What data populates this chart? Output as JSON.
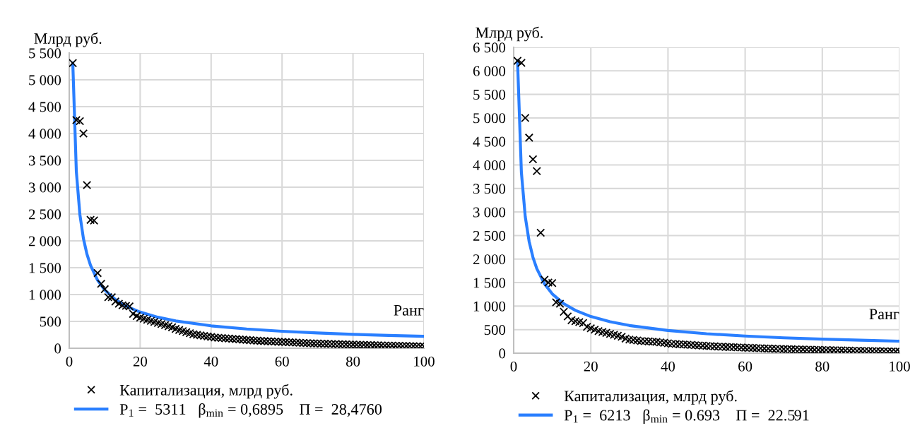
{
  "chart_data": [
    {
      "type": "scatter",
      "ylabel": "Млрд руб.",
      "xlabel": "Ранг",
      "xlim": [
        0,
        100
      ],
      "xticks": [
        0,
        20,
        40,
        60,
        80,
        100
      ],
      "ylim": [
        0,
        5500
      ],
      "yticks": [
        0,
        500,
        {
          "value": 1000,
          "label": "1 000"
        },
        {
          "value": 1500,
          "label": "1 500"
        },
        {
          "value": 2000,
          "label": "2 000"
        },
        {
          "value": 2500,
          "label": "2 500"
        },
        {
          "value": 3000,
          "label": "3 000"
        },
        {
          "value": 3500,
          "label": "3 500"
        },
        {
          "value": 4000,
          "label": "4 000"
        },
        {
          "value": 4500,
          "label": "4 500"
        },
        {
          "value": 5000,
          "label": "5 000"
        },
        {
          "value": 5500,
          "label": "5 500"
        }
      ],
      "grid": true,
      "legend": "bottom",
      "marker": "cross",
      "x": [
        1,
        2,
        3,
        4,
        5,
        6,
        7,
        8,
        9,
        10,
        11,
        12,
        13,
        14,
        15,
        16,
        17,
        18,
        19,
        20,
        21,
        22,
        23,
        24,
        25,
        26,
        27,
        28,
        29,
        30,
        31,
        32,
        33,
        34,
        35,
        36,
        37,
        38,
        39,
        40,
        41,
        42,
        43,
        44,
        45,
        46,
        47,
        48,
        49,
        50,
        51,
        52,
        53,
        54,
        55,
        56,
        57,
        58,
        59,
        60,
        61,
        62,
        63,
        64,
        65,
        66,
        67,
        68,
        69,
        70,
        71,
        72,
        73,
        74,
        75,
        76,
        77,
        78,
        79,
        80,
        81,
        82,
        83,
        84,
        85,
        86,
        87,
        88,
        89,
        90,
        91,
        92,
        93,
        94,
        95,
        96,
        97,
        98,
        99,
        100
      ],
      "series": [
        {
          "name": "Капитализация, млрд руб.",
          "color": "#000000",
          "values": [
            5311,
            4250,
            4230,
            4000,
            3040,
            2390,
            2380,
            1400,
            1200,
            1100,
            950,
            950,
            870,
            830,
            800,
            790,
            780,
            640,
            600,
            570,
            550,
            530,
            510,
            490,
            470,
            450,
            430,
            410,
            390,
            360,
            340,
            320,
            300,
            280,
            260,
            250,
            240,
            230,
            220,
            210,
            200,
            195,
            190,
            185,
            180,
            175,
            170,
            165,
            160,
            155,
            150,
            145,
            140,
            137,
            133,
            130,
            127,
            124,
            120,
            117,
            114,
            111,
            108,
            105,
            102,
            99,
            96,
            93,
            90,
            88,
            86,
            84,
            82,
            80,
            78,
            76,
            74,
            72,
            70,
            68,
            66,
            64,
            62,
            60,
            58,
            56,
            54,
            52,
            50,
            49,
            48,
            46,
            45,
            43,
            41,
            40,
            38,
            36,
            34,
            32
          ]
        },
        {
          "name": "P$_{1}$ =  5311   β$_{min}$ = 0,6895    Π =  28,4760",
          "type": "line",
          "color": "#2a7fff",
          "marker": "none",
          "line_style": "solid",
          "x": [
            1,
            2,
            3,
            4,
            5,
            6,
            8,
            10,
            13,
            16,
            20,
            25,
            30,
            40,
            50,
            60,
            70,
            80,
            90,
            100
          ],
          "values": [
            5311,
            3293,
            2490,
            2042,
            1751,
            1544,
            1266,
            1086,
            906,
            785,
            673,
            577,
            509,
            417,
            358,
            316,
            284,
            259,
            238,
            222
          ]
        }
      ]
    },
    {
      "type": "scatter",
      "ylabel": "Млрд руб.",
      "xlabel": "Ранг",
      "xlim": [
        0,
        100
      ],
      "xticks": [
        0,
        20,
        40,
        60,
        80,
        100
      ],
      "ylim": [
        0,
        6500
      ],
      "yticks": [
        0,
        500,
        {
          "value": 1000,
          "label": "1 000"
        },
        {
          "value": 1500,
          "label": "1 500"
        },
        {
          "value": 2000,
          "label": "2 000"
        },
        {
          "value": 2500,
          "label": "2 500"
        },
        {
          "value": 3000,
          "label": "3 000"
        },
        {
          "value": 3500,
          "label": "3 500"
        },
        {
          "value": 4000,
          "label": "4 000"
        },
        {
          "value": 4500,
          "label": "4 500"
        },
        {
          "value": 5000,
          "label": "5 000"
        },
        {
          "value": 5500,
          "label": "5 500"
        },
        {
          "value": 6000,
          "label": "6 000"
        },
        {
          "value": 6500,
          "label": "6 500"
        }
      ],
      "grid": true,
      "legend": "bottom",
      "marker": "cross",
      "x": [
        1,
        2,
        3,
        4,
        5,
        6,
        7,
        8,
        9,
        10,
        11,
        12,
        13,
        14,
        15,
        16,
        17,
        18,
        19,
        20,
        21,
        22,
        23,
        24,
        25,
        26,
        27,
        28,
        29,
        30,
        31,
        32,
        33,
        34,
        35,
        36,
        37,
        38,
        39,
        40,
        41,
        42,
        43,
        44,
        45,
        46,
        47,
        48,
        49,
        50,
        51,
        52,
        53,
        54,
        55,
        56,
        57,
        58,
        59,
        60,
        61,
        62,
        63,
        64,
        65,
        66,
        67,
        68,
        69,
        70,
        71,
        72,
        73,
        74,
        75,
        76,
        77,
        78,
        79,
        80,
        81,
        82,
        83,
        84,
        85,
        86,
        87,
        88,
        89,
        90,
        91,
        92,
        93,
        94,
        95,
        96,
        97,
        98,
        99,
        100
      ],
      "series": [
        {
          "name": "Капитализация, млрд руб.",
          "color": "#000000",
          "values": [
            6213,
            6170,
            5000,
            4580,
            4120,
            3870,
            2560,
            1560,
            1500,
            1490,
            1080,
            1050,
            880,
            780,
            700,
            680,
            660,
            640,
            560,
            530,
            500,
            470,
            450,
            430,
            410,
            390,
            370,
            350,
            310,
            290,
            280,
            270,
            260,
            255,
            250,
            245,
            240,
            230,
            220,
            210,
            200,
            195,
            190,
            185,
            180,
            175,
            170,
            165,
            160,
            155,
            150,
            145,
            140,
            137,
            133,
            130,
            127,
            124,
            120,
            117,
            114,
            111,
            108,
            105,
            102,
            99,
            96,
            93,
            90,
            88,
            86,
            84,
            82,
            80,
            78,
            76,
            74,
            72,
            70,
            68,
            66,
            64,
            62,
            60,
            58,
            56,
            54,
            52,
            50,
            49,
            48,
            46,
            45,
            43,
            41,
            40,
            38,
            36,
            34,
            32
          ]
        },
        {
          "name": "P$_{1}$ =  6213   β$_{min}$ = 0.693    Π =  22.591",
          "type": "line",
          "color": "#2a7fff",
          "marker": "none",
          "line_style": "solid",
          "x": [
            1,
            2,
            3,
            4,
            5,
            6,
            8,
            10,
            13,
            16,
            20,
            25,
            30,
            40,
            50,
            60,
            70,
            80,
            90,
            100
          ],
          "values": [
            6213,
            3843,
            2902,
            2377,
            2037,
            1795,
            1471,
            1260,
            1050,
            910,
            779,
            668,
            588,
            482,
            413,
            364,
            327,
            298,
            275,
            255
          ]
        }
      ]
    }
  ]
}
